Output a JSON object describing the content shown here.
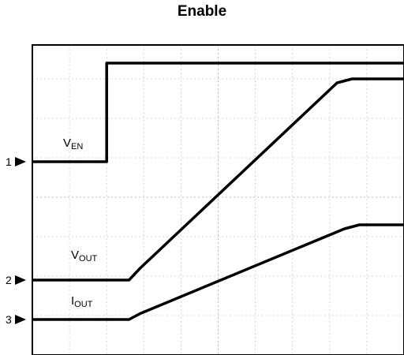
{
  "chart_data": {
    "type": "line",
    "title": "Enable",
    "x_divisions": 10,
    "y_divisions": 8,
    "grid": true,
    "channels": [
      {
        "marker": "1",
        "ground_level_div": 4.9
      },
      {
        "marker": "2",
        "ground_level_div": 1.9
      },
      {
        "marker": "3",
        "ground_level_div": 0.9
      }
    ],
    "series": [
      {
        "label_main": "V",
        "label_sub": "EN",
        "channel": "1",
        "points": [
          [
            0,
            4.9
          ],
          [
            2.0,
            4.9
          ],
          [
            2.0,
            7.4
          ],
          [
            10,
            7.4
          ]
        ]
      },
      {
        "label_main": "V",
        "label_sub": "OUT",
        "channel": "2",
        "points": [
          [
            0,
            1.9
          ],
          [
            2.6,
            1.9
          ],
          [
            2.9,
            2.2
          ],
          [
            8.2,
            6.9
          ],
          [
            8.6,
            7.0
          ],
          [
            10,
            7.0
          ]
        ]
      },
      {
        "label_main": "I",
        "label_sub": "OUT",
        "channel": "3",
        "points": [
          [
            0,
            0.9
          ],
          [
            2.6,
            0.9
          ],
          [
            2.9,
            1.05
          ],
          [
            8.4,
            3.2
          ],
          [
            8.8,
            3.3
          ],
          [
            10,
            3.3
          ]
        ]
      }
    ]
  }
}
